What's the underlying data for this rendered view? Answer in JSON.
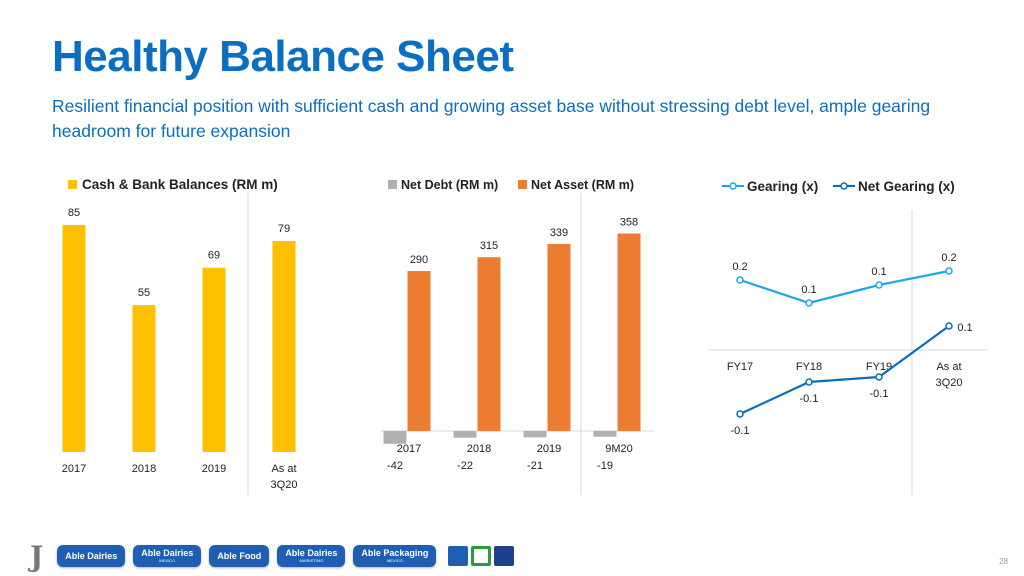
{
  "title": "Healthy Balance Sheet",
  "subtitle": "Resilient financial position with sufficient cash and growing asset base without stressing debt level, ample gearing headroom for future expansion",
  "page_number": "28",
  "footer": {
    "logos": [
      {
        "label": "Able Dairies",
        "sub": ""
      },
      {
        "label": "Able Dairies",
        "sub": "MEXICO"
      },
      {
        "label": "Able Food",
        "sub": ""
      },
      {
        "label": "Able Dairies",
        "sub": "MARKETING"
      },
      {
        "label": "Able Packaging",
        "sub": "MEXICO"
      }
    ]
  },
  "colors": {
    "title": "#0a6fc2",
    "gold": "#ffc000",
    "orange": "#ed7d31",
    "grey": "#b0b0b0",
    "light_blue": "#1ea7e8",
    "dark_blue": "#0b6db7"
  },
  "chart_data": [
    {
      "type": "bar",
      "categories": [
        "2017",
        "2018",
        "2019",
        "As at 3Q20"
      ],
      "series": [
        {
          "name": "Cash & Bank Balances (RM m)",
          "values": [
            85,
            55,
            69,
            79
          ]
        }
      ],
      "legend": "top"
    },
    {
      "type": "bar",
      "categories": [
        "2017",
        "2018",
        "2019",
        "9M20"
      ],
      "series": [
        {
          "name": "Net Debt (RM m)",
          "values": [
            -42,
            -22,
            -21,
            -19
          ]
        },
        {
          "name": "Net Asset (RM m)",
          "values": [
            290,
            315,
            339,
            358
          ]
        }
      ],
      "legend": "top"
    },
    {
      "type": "line",
      "categories": [
        "FY17",
        "FY18",
        "FY19",
        "As at 3Q20"
      ],
      "series": [
        {
          "name": "Gearing (x)",
          "values": [
            0.2,
            0.1,
            0.1,
            0.2
          ]
        },
        {
          "name": "Net Gearing (x)",
          "values": [
            -0.1,
            -0.1,
            -0.1,
            0.1
          ]
        }
      ],
      "legend": "top"
    }
  ]
}
